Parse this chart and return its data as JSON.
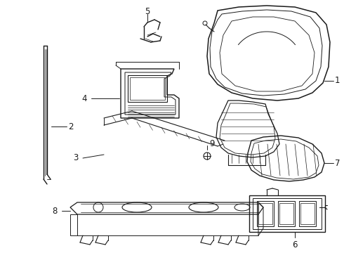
{
  "background_color": "#ffffff",
  "line_color": "#1a1a1a",
  "line_width": 0.75,
  "label_fontsize": 8.5,
  "figw": 4.9,
  "figh": 3.6,
  "dpi": 100
}
